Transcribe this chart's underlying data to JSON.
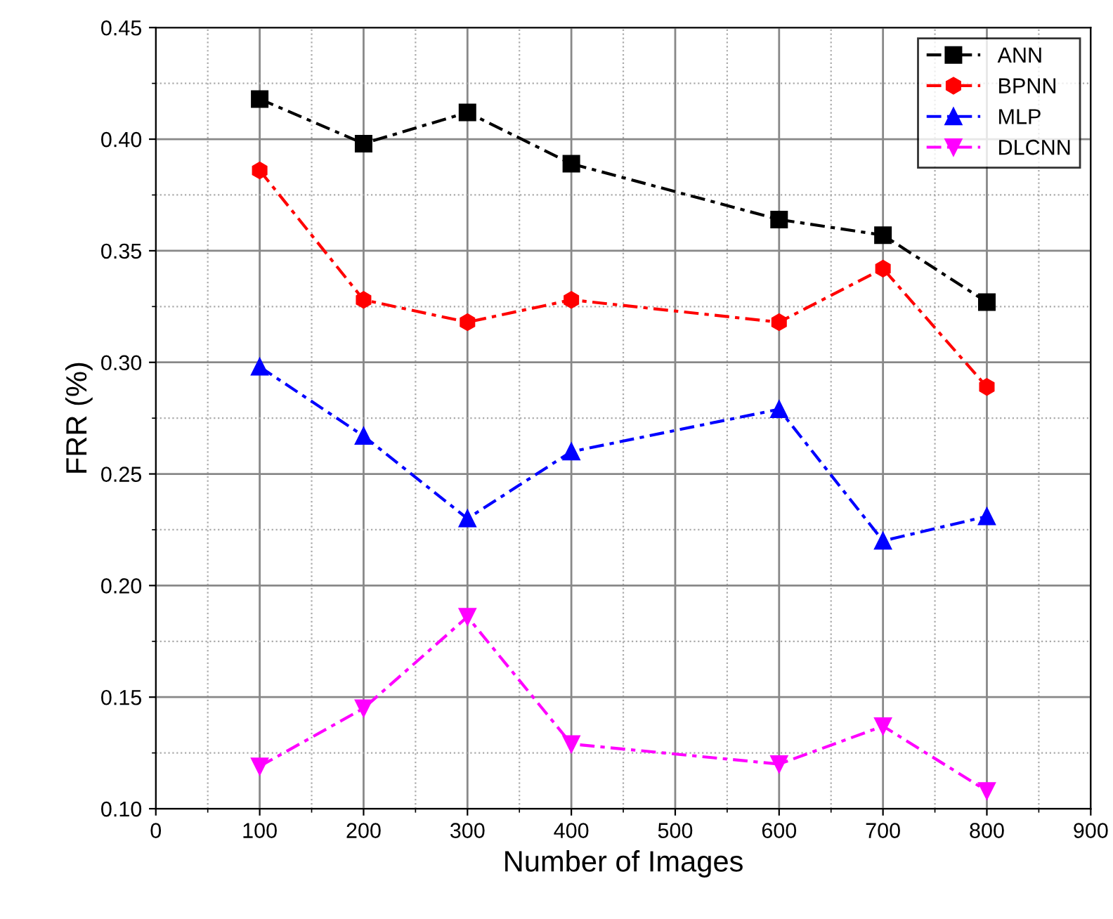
{
  "chart_data": {
    "type": "line",
    "xlabel": "Number of Images",
    "ylabel": "FRR (%)",
    "x": [
      100,
      200,
      300,
      400,
      600,
      700,
      800
    ],
    "series": [
      {
        "name": "ANN",
        "color": "#000000",
        "marker": "square",
        "line_style": "dashed",
        "values": [
          0.418,
          0.398,
          0.412,
          0.389,
          0.364,
          0.357,
          0.327
        ]
      },
      {
        "name": "BPNN",
        "color": "#ff0000",
        "marker": "circle",
        "line_style": "dashed",
        "values": [
          0.386,
          0.328,
          0.318,
          0.328,
          0.318,
          0.342,
          0.289
        ]
      },
      {
        "name": "MLP",
        "color": "#0000ff",
        "marker": "triangle",
        "line_style": "dashed",
        "values": [
          0.298,
          0.267,
          0.23,
          0.26,
          0.279,
          0.22,
          0.231
        ]
      },
      {
        "name": "DLCNN",
        "color": "#ff00ff",
        "marker": "triangle_down",
        "line_style": "dashed",
        "values": [
          0.119,
          0.145,
          0.186,
          0.129,
          0.12,
          0.137,
          0.108
        ]
      }
    ],
    "xlim": [
      0,
      900
    ],
    "xticks": [
      0,
      100,
      200,
      300,
      400,
      500,
      600,
      700,
      800,
      900
    ],
    "ylim": [
      0.1,
      0.45
    ],
    "yticks": [
      {
        "value": 0.1,
        "label": "0.10"
      },
      {
        "value": 0.15,
        "label": "0.15"
      },
      {
        "value": 0.2,
        "label": "0.20"
      },
      {
        "value": 0.25,
        "label": "0.25"
      },
      {
        "value": 0.3,
        "label": "0.30"
      },
      {
        "value": 0.35,
        "label": "0.35"
      },
      {
        "value": 0.4,
        "label": "0.40"
      },
      {
        "value": 0.45,
        "label": "0.45"
      }
    ],
    "grid": true,
    "legend": "top right"
  }
}
